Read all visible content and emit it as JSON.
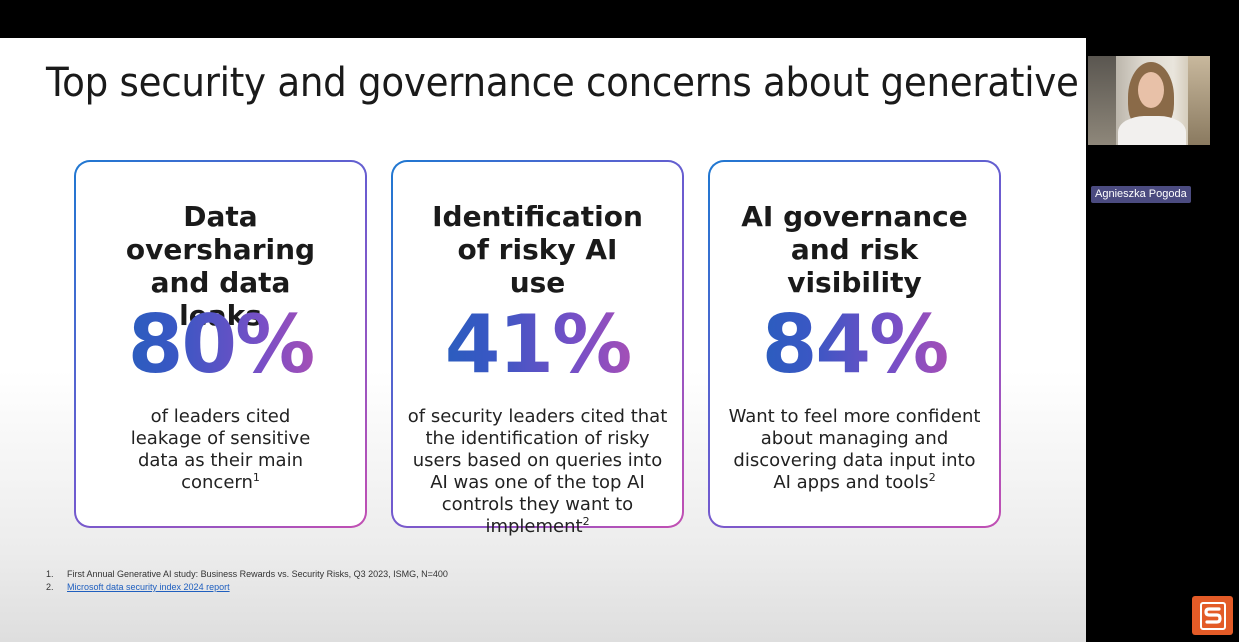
{
  "slide": {
    "title": "Top security and governance concerns about generative AI",
    "cards": [
      {
        "heading": "Data oversharing and data leaks",
        "stat": "80%",
        "description": "of leaders cited leakage of sensitive data as their main concern",
        "footnote_ref": "1"
      },
      {
        "heading": "Identification of risky AI use",
        "stat": "41%",
        "description": "of security leaders cited that the identification of risky users based on queries into AI was one of the top AI controls they want to implement",
        "footnote_ref": "2"
      },
      {
        "heading": "AI governance and risk visibility",
        "stat": "84%",
        "description": "Want to feel more confident about managing and discovering data input into AI apps and tools",
        "footnote_ref": "2"
      }
    ],
    "footnotes": [
      {
        "number": "1.",
        "text": "First Annual Generative AI study: Business Rewards vs. Security Risks, Q3 2023, ISMG, N=400"
      },
      {
        "number": "2.",
        "text": "Microsoft data security index 2024 report"
      }
    ],
    "colors": {
      "gradient_start": "#1b63b8",
      "gradient_mid": "#7a4fc6",
      "gradient_end": "#cf4fa6"
    }
  },
  "participant": {
    "name": "Agnieszka Pogoda"
  },
  "app_logo": {
    "icon": "s-logo-icon",
    "color": "#e35b27"
  }
}
